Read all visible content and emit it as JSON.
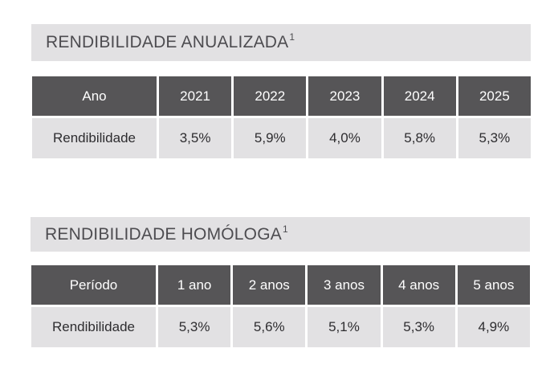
{
  "sections": [
    {
      "title": "RENDIBILIDADE ANUALIZADA",
      "title_sup": "1",
      "header_label": "Ano",
      "columns": [
        "2021",
        "2022",
        "2023",
        "2024",
        "2025"
      ],
      "row_label": "Rendibilidade",
      "values": [
        "3,5%",
        "5,9%",
        "4,0%",
        "5,8%",
        "5,3%"
      ]
    },
    {
      "title": "RENDIBILIDADE HOMÓLOGA",
      "title_sup": "1",
      "header_label": "Período",
      "columns": [
        "1 ano",
        "2 anos",
        "3 anos",
        "4 anos",
        "5 anos"
      ],
      "row_label": "Rendibilidade",
      "values": [
        "5,3%",
        "5,6%",
        "5,1%",
        "5,3%",
        "4,9%"
      ]
    }
  ],
  "colors": {
    "title_bg": "#e2e1e3",
    "header_bg": "#565557",
    "cell_bg": "#e2e1e3"
  }
}
